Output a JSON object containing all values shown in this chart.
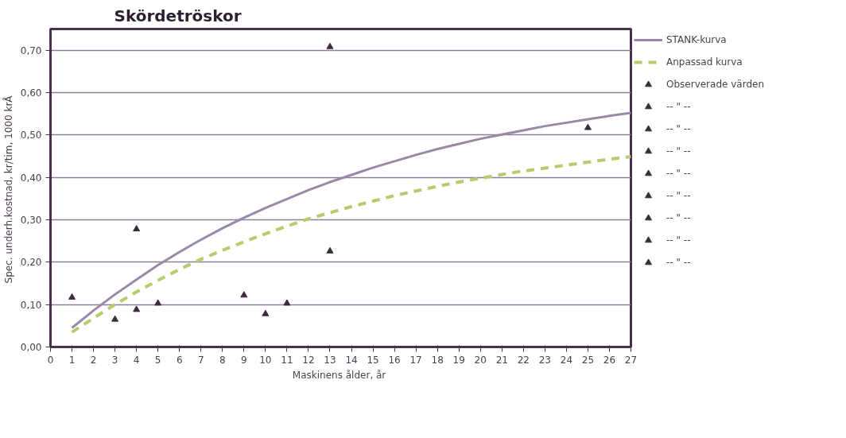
{
  "chart_data": {
    "type": "line",
    "title": "Skördetröskor",
    "xlabel": "Maskinens ålder,  år",
    "ylabel": "Spec. underh.kostnad,  kr/tim, 1000 krÅ",
    "x": [
      1,
      2,
      3,
      4,
      5,
      6,
      7,
      8,
      9,
      10,
      11,
      12,
      13,
      14,
      15,
      16,
      17,
      18,
      19,
      20,
      21,
      22,
      23,
      24,
      25,
      26,
      27
    ],
    "xlim": [
      0,
      27
    ],
    "xticks": [
      0,
      1,
      2,
      3,
      4,
      5,
      6,
      7,
      8,
      9,
      10,
      11,
      12,
      13,
      14,
      15,
      16,
      17,
      18,
      19,
      20,
      21,
      22,
      23,
      24,
      25,
      26,
      27
    ],
    "ylim": [
      0,
      0.75
    ],
    "yticks": [
      {
        "value": 0,
        "label": "0,00"
      },
      {
        "value": 0.1,
        "label": "0,10"
      },
      {
        "value": 0.2,
        "label": "0,20"
      },
      {
        "value": 0.3,
        "label": "0,30"
      },
      {
        "value": 0.4,
        "label": "0,40"
      },
      {
        "value": 0.5,
        "label": "0,50"
      },
      {
        "value": 0.6,
        "label": "0,60"
      },
      {
        "value": 0.7,
        "label": "0,70"
      }
    ],
    "grid": "y",
    "legend": "right",
    "series": [
      {
        "name": "STANK-kurva",
        "type": "line",
        "color": "#9b88a8",
        "line_style": "solid",
        "values": [
          0.045,
          0.086,
          0.124,
          0.159,
          0.193,
          0.224,
          0.253,
          0.28,
          0.305,
          0.328,
          0.349,
          0.37,
          0.389,
          0.406,
          0.423,
          0.438,
          0.453,
          0.467,
          0.479,
          0.491,
          0.501,
          0.511,
          0.521,
          0.529,
          0.537,
          0.545,
          0.552
        ]
      },
      {
        "name": "Anpassad kurva",
        "type": "line",
        "color": "#b5cc6a",
        "line_style": "dashed",
        "values": [
          0.035,
          0.068,
          0.1,
          0.13,
          0.157,
          0.183,
          0.207,
          0.228,
          0.248,
          0.267,
          0.285,
          0.302,
          0.317,
          0.331,
          0.344,
          0.357,
          0.368,
          0.379,
          0.389,
          0.398,
          0.407,
          0.415,
          0.422,
          0.429,
          0.436,
          0.443,
          0.449
        ]
      },
      {
        "name": "Observerade värden",
        "type": "scatter",
        "marker": "triangle",
        "color": "#3d2a40",
        "x": [
          1,
          3,
          4,
          4,
          5,
          9,
          10,
          11,
          13,
          13,
          25
        ],
        "values": [
          0.117,
          0.065,
          0.278,
          0.088,
          0.103,
          0.122,
          0.078,
          0.103,
          0.708,
          0.226,
          0.517
        ]
      },
      {
        "name": "-- \" --",
        "type": "scatter",
        "marker": "triangle",
        "color": "#3d2a40",
        "values": [
          null,
          null,
          null,
          null,
          null,
          null,
          null,
          null,
          null,
          null,
          null,
          null,
          null,
          null,
          null,
          null,
          null,
          null,
          null,
          null,
          null,
          null,
          null,
          null,
          null,
          null,
          null
        ]
      },
      {
        "name": "-- \" --",
        "type": "scatter",
        "marker": "triangle",
        "color": "#3d2a40",
        "values": [
          null,
          null,
          null,
          null,
          null,
          null,
          null,
          null,
          null,
          null,
          null,
          null,
          null,
          null,
          null,
          null,
          null,
          null,
          null,
          null,
          null,
          null,
          null,
          null,
          null,
          null,
          null
        ]
      },
      {
        "name": "-- \" --",
        "type": "scatter",
        "marker": "triangle",
        "color": "#3d2a40",
        "values": [
          null,
          null,
          null,
          null,
          null,
          null,
          null,
          null,
          null,
          null,
          null,
          null,
          null,
          null,
          null,
          null,
          null,
          null,
          null,
          null,
          null,
          null,
          null,
          null,
          null,
          null,
          null
        ]
      },
      {
        "name": "-- \" --",
        "type": "scatter",
        "marker": "triangle",
        "color": "#3d2a40",
        "values": [
          null,
          null,
          null,
          null,
          null,
          null,
          null,
          null,
          null,
          null,
          null,
          null,
          null,
          null,
          null,
          null,
          null,
          null,
          null,
          null,
          null,
          null,
          null,
          null,
          null,
          null,
          null
        ]
      },
      {
        "name": "-- \" --",
        "type": "scatter",
        "marker": "triangle",
        "color": "#3d2a40",
        "values": [
          null,
          null,
          null,
          null,
          null,
          null,
          null,
          null,
          null,
          null,
          null,
          null,
          null,
          null,
          null,
          null,
          null,
          null,
          null,
          null,
          null,
          null,
          null,
          null,
          null,
          null,
          null
        ]
      },
      {
        "name": "-- \" --",
        "type": "scatter",
        "marker": "triangle",
        "color": "#3d2a40",
        "values": [
          null,
          null,
          null,
          null,
          null,
          null,
          null,
          null,
          null,
          null,
          null,
          null,
          null,
          null,
          null,
          null,
          null,
          null,
          null,
          null,
          null,
          null,
          null,
          null,
          null,
          null,
          null
        ]
      },
      {
        "name": "-- \" --",
        "type": "scatter",
        "marker": "triangle",
        "color": "#3d2a40",
        "values": [
          null,
          null,
          null,
          null,
          null,
          null,
          null,
          null,
          null,
          null,
          null,
          null,
          null,
          null,
          null,
          null,
          null,
          null,
          null,
          null,
          null,
          null,
          null,
          null,
          null,
          null,
          null
        ]
      },
      {
        "name": "-- \" --",
        "type": "scatter",
        "marker": "triangle",
        "color": "#3d2a40",
        "values": [
          null,
          null,
          null,
          null,
          null,
          null,
          null,
          null,
          null,
          null,
          null,
          null,
          null,
          null,
          null,
          null,
          null,
          null,
          null,
          null,
          null,
          null,
          null,
          null,
          null,
          null,
          null
        ]
      }
    ]
  }
}
